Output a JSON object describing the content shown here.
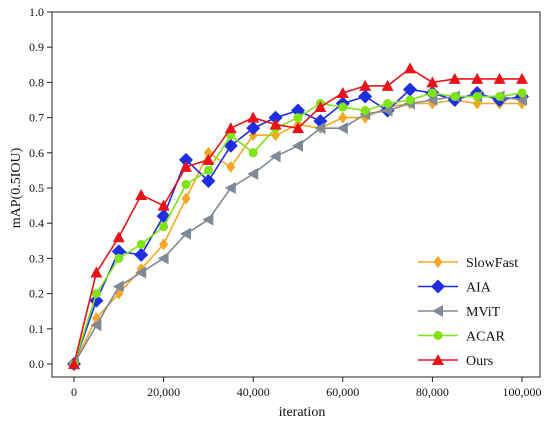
{
  "chart_data": {
    "type": "line",
    "xlabel": "iteration",
    "ylabel": "mAP(0.5IOU)",
    "xlim": [
      0,
      100000
    ],
    "ylim": [
      0.0,
      1.0
    ],
    "x_ticks": [
      0,
      20000,
      40000,
      60000,
      80000,
      100000
    ],
    "x_tick_labels": [
      "0",
      "20,000",
      "40,000",
      "60,000",
      "80,000",
      "100,000"
    ],
    "y_ticks": [
      0.0,
      0.1,
      0.2,
      0.3,
      0.4,
      0.5,
      0.6,
      0.7,
      0.8,
      0.9,
      1.0
    ],
    "y_tick_labels": [
      "0.0",
      "0.1",
      "0.2",
      "0.3",
      "0.4",
      "0.5",
      "0.6",
      "0.7",
      "0.8",
      "0.9",
      "1.0"
    ],
    "grid": false,
    "legend_position": "bottom-right",
    "x": [
      0,
      5000,
      10000,
      15000,
      20000,
      25000,
      30000,
      35000,
      40000,
      45000,
      50000,
      55000,
      60000,
      65000,
      70000,
      75000,
      80000,
      85000,
      90000,
      95000,
      100000
    ],
    "series": [
      {
        "name": "SlowFast",
        "color": "#f5a623",
        "marker": "diamond-small",
        "values": [
          0.0,
          0.13,
          0.2,
          0.27,
          0.34,
          0.47,
          0.6,
          0.56,
          0.65,
          0.65,
          0.68,
          0.67,
          0.7,
          0.7,
          0.73,
          0.74,
          0.74,
          0.75,
          0.74,
          0.74,
          0.74
        ]
      },
      {
        "name": "AIA",
        "color": "#1f2ee0",
        "marker": "diamond",
        "values": [
          0.0,
          0.18,
          0.32,
          0.31,
          0.42,
          0.58,
          0.52,
          0.62,
          0.67,
          0.7,
          0.72,
          0.69,
          0.74,
          0.76,
          0.72,
          0.78,
          0.77,
          0.75,
          0.77,
          0.75,
          0.76
        ]
      },
      {
        "name": "MViT",
        "color": "#7f8a96",
        "marker": "triangle-left",
        "values": [
          0.0,
          0.11,
          0.22,
          0.26,
          0.3,
          0.37,
          0.41,
          0.5,
          0.54,
          0.59,
          0.62,
          0.67,
          0.67,
          0.71,
          0.72,
          0.74,
          0.75,
          0.76,
          0.76,
          0.76,
          0.75
        ]
      },
      {
        "name": "ACAR",
        "color": "#7fe316",
        "marker": "circle",
        "values": [
          0.0,
          0.2,
          0.3,
          0.34,
          0.39,
          0.51,
          0.55,
          0.65,
          0.6,
          0.67,
          0.7,
          0.74,
          0.73,
          0.72,
          0.74,
          0.75,
          0.77,
          0.76,
          0.76,
          0.76,
          0.77
        ]
      },
      {
        "name": "Ours",
        "color": "#e8131a",
        "marker": "triangle-up",
        "values": [
          0.0,
          0.26,
          0.36,
          0.48,
          0.45,
          0.56,
          0.58,
          0.67,
          0.7,
          0.68,
          0.67,
          0.73,
          0.77,
          0.79,
          0.79,
          0.84,
          0.8,
          0.81,
          0.81,
          0.81,
          0.81
        ]
      }
    ]
  }
}
